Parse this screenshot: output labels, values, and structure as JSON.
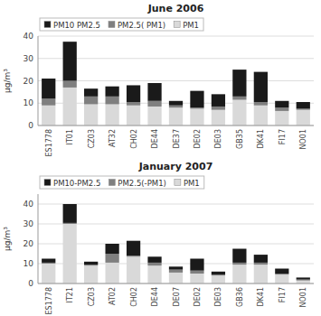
{
  "chart_data": [
    {
      "type": "bar",
      "stacked": true,
      "title": "June 2006",
      "ylabel": "μg/m³",
      "categories": [
        "ES1778",
        "IT01",
        "CZ03",
        "AT32",
        "CH02",
        "DE44",
        "DE37",
        "DE02",
        "DE03",
        "GB35",
        "DK41",
        "FI17",
        "NO01"
      ],
      "series": [
        {
          "name": "PM10 PM2.5",
          "color": "#1a1a1a",
          "values": [
            9.0,
            17.5,
            3.5,
            4.5,
            7.5,
            8.0,
            2.0,
            7.5,
            5.5,
            12.0,
            13.5,
            3.0,
            3.0
          ]
        },
        {
          "name": "PM2.5( PM1)",
          "color": "#7f7f7f",
          "values": [
            3.0,
            3.0,
            3.5,
            3.5,
            1.5,
            2.5,
            1.0,
            0.5,
            1.5,
            1.5,
            1.5,
            1.5,
            0.5
          ]
        },
        {
          "name": "PM1",
          "color": "#d9d9d9",
          "values": [
            9.0,
            17.0,
            9.5,
            9.5,
            9.0,
            8.5,
            8.0,
            7.5,
            7.0,
            11.5,
            9.0,
            6.5,
            7.0
          ]
        }
      ],
      "ylim": [
        0,
        40
      ],
      "yticks": [
        0,
        10,
        20,
        30,
        40
      ],
      "grid": true,
      "legend": "top-left"
    },
    {
      "type": "bar",
      "stacked": true,
      "title": "January 2007",
      "ylabel": "μg/m³",
      "categories": [
        "ES1778",
        "IT21",
        "CZ03",
        "AT02",
        "CH02",
        "DE44",
        "DE07",
        "DE02",
        "DE03",
        "GB36",
        "DK41",
        "FI17",
        "NO01"
      ],
      "series": [
        {
          "name": "PM10-PM2.5",
          "color": "#1a1a1a",
          "values": [
            2.0,
            9.5,
            1.5,
            5.0,
            7.5,
            3.0,
            1.5,
            6.0,
            1.5,
            7.0,
            4.0,
            2.5,
            1.0
          ]
        },
        {
          "name": "PM2.5(-PM1)",
          "color": "#7f7f7f",
          "values": [
            0.5,
            0.5,
            0.5,
            4.5,
            0.5,
            1.5,
            1.5,
            1.5,
            0.5,
            1.0,
            1.0,
            0.5,
            0.5
          ]
        },
        {
          "name": "PM1",
          "color": "#d9d9d9",
          "values": [
            10.0,
            30.0,
            9.0,
            10.5,
            13.5,
            9.0,
            5.5,
            5.0,
            4.0,
            9.5,
            9.5,
            4.5,
            1.5
          ]
        }
      ],
      "ylim": [
        0,
        45
      ],
      "yticks": [
        0,
        10,
        20,
        30,
        40
      ],
      "grid": true,
      "legend": "top-left"
    }
  ]
}
